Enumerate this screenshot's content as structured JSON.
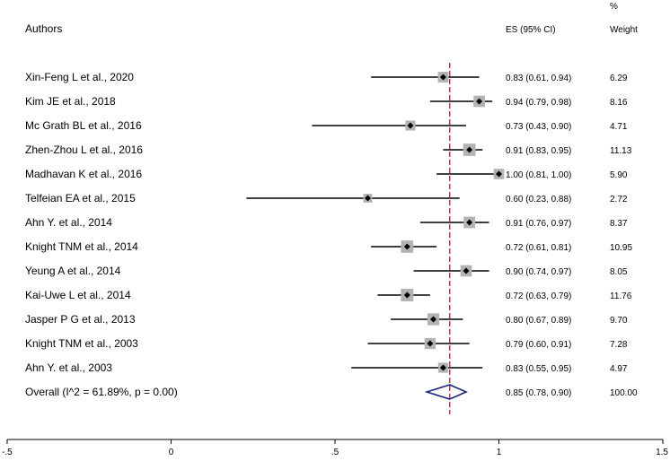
{
  "chart_data": {
    "type": "forest",
    "headers": {
      "authors": "Authors",
      "es": "ES (95% CI)",
      "weight_top": "%",
      "weight": "Weight"
    },
    "studies": [
      {
        "label": "Xin-Feng L et al., 2020",
        "es": 0.83,
        "lo": 0.61,
        "hi": 0.94,
        "es_text": "0.83 (0.61, 0.94)",
        "weight": 6.29,
        "weight_text": "6.29"
      },
      {
        "label": "Kim JE et al., 2018",
        "es": 0.94,
        "lo": 0.79,
        "hi": 0.98,
        "es_text": "0.94 (0.79, 0.98)",
        "weight": 8.16,
        "weight_text": "8.16"
      },
      {
        "label": "Mc Grath BL et al., 2016",
        "es": 0.73,
        "lo": 0.43,
        "hi": 0.9,
        "es_text": "0.73 (0.43, 0.90)",
        "weight": 4.71,
        "weight_text": "4.71"
      },
      {
        "label": "Zhen-Zhou L et al., 2016",
        "es": 0.91,
        "lo": 0.83,
        "hi": 0.95,
        "es_text": "0.91 (0.83, 0.95)",
        "weight": 11.13,
        "weight_text": "11.13"
      },
      {
        "label": "Madhavan K et al., 2016",
        "es": 1.0,
        "lo": 0.81,
        "hi": 1.0,
        "es_text": "1.00 (0.81, 1.00)",
        "weight": 5.9,
        "weight_text": "5.90"
      },
      {
        "label": "Telfeian EA et al., 2015",
        "es": 0.6,
        "lo": 0.23,
        "hi": 0.88,
        "es_text": "0.60 (0.23, 0.88)",
        "weight": 2.72,
        "weight_text": "2.72"
      },
      {
        "label": "Ahn Y. et al., 2014",
        "es": 0.91,
        "lo": 0.76,
        "hi": 0.97,
        "es_text": "0.91 (0.76, 0.97)",
        "weight": 8.37,
        "weight_text": "8.37"
      },
      {
        "label": "Knight TNM et al., 2014",
        "es": 0.72,
        "lo": 0.61,
        "hi": 0.81,
        "es_text": "0.72 (0.61, 0.81)",
        "weight": 10.95,
        "weight_text": "10.95"
      },
      {
        "label": "Yeung A et al., 2014",
        "es": 0.9,
        "lo": 0.74,
        "hi": 0.97,
        "es_text": "0.90 (0.74, 0.97)",
        "weight": 8.05,
        "weight_text": "8.05"
      },
      {
        "label": "Kai-Uwe L et al., 2014",
        "es": 0.72,
        "lo": 0.63,
        "hi": 0.79,
        "es_text": "0.72 (0.63, 0.79)",
        "weight": 11.76,
        "weight_text": "11.76"
      },
      {
        "label": "Jasper P G et al., 2013",
        "es": 0.8,
        "lo": 0.67,
        "hi": 0.89,
        "es_text": "0.80 (0.67, 0.89)",
        "weight": 9.7,
        "weight_text": "9.70"
      },
      {
        "label": "Knight TNM et al., 2003",
        "es": 0.79,
        "lo": 0.6,
        "hi": 0.91,
        "es_text": "0.79 (0.60, 0.91)",
        "weight": 7.28,
        "weight_text": "7.28"
      },
      {
        "label": "Ahn Y. et al., 2003",
        "es": 0.83,
        "lo": 0.55,
        "hi": 0.95,
        "es_text": "0.83 (0.55, 0.95)",
        "weight": 4.97,
        "weight_text": "4.97"
      }
    ],
    "overall": {
      "label": "Overall  (I^2 = 61.89%, p = 0.00)",
      "es": 0.85,
      "lo": 0.78,
      "hi": 0.9,
      "es_text": "0.85 (0.78, 0.90)",
      "weight_text": "100.00"
    },
    "x_axis": {
      "xlim": [
        -0.5,
        1.5
      ],
      "ticks": [
        -0.5,
        0,
        0.5,
        1,
        1.5
      ],
      "tick_labels": [
        "-.5",
        "0",
        ".5",
        "1",
        "1.5"
      ]
    },
    "reference_line": 0.85,
    "colors": {
      "ci_line": "#000000",
      "box": "#b3b3b3",
      "point": "#000000",
      "ref_line": "#a0142a",
      "diamond": "#1a237e"
    }
  }
}
